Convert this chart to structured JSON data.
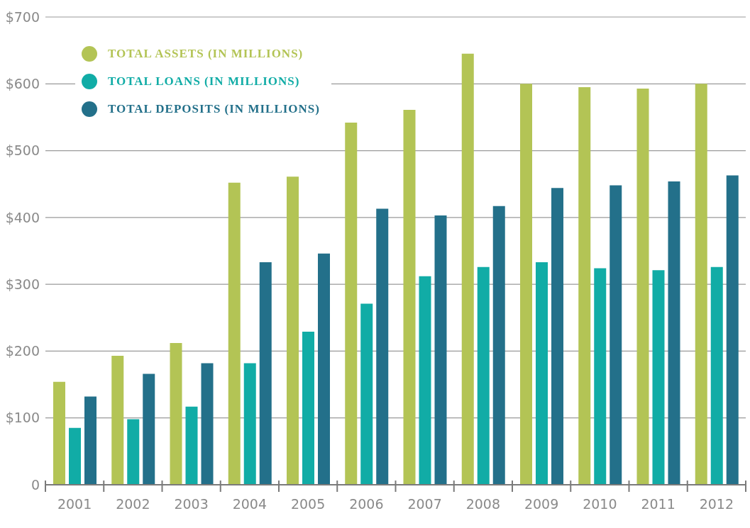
{
  "chart_data": {
    "type": "bar",
    "categories": [
      "2001",
      "2002",
      "2003",
      "2004",
      "2005",
      "2006",
      "2007",
      "2008",
      "2009",
      "2010",
      "2011",
      "2012"
    ],
    "series": [
      {
        "name": "TOTAL ASSETS (IN MILLIONS)",
        "color": "#b3c455",
        "values": [
          154,
          193,
          212,
          452,
          461,
          542,
          561,
          645,
          600,
          595,
          593,
          600
        ]
      },
      {
        "name": "TOTAL LOANS (IN MILLIONS)",
        "color": "#11aca6",
        "values": [
          85,
          98,
          117,
          182,
          229,
          271,
          312,
          326,
          333,
          324,
          321,
          326
        ]
      },
      {
        "name": "TOTAL DEPOSITS (IN MILLIONS)",
        "color": "#23708a",
        "values": [
          132,
          166,
          182,
          333,
          346,
          413,
          403,
          417,
          444,
          448,
          454,
          463
        ]
      }
    ],
    "ylim": [
      0,
      700
    ],
    "yticks": [
      {
        "value": 0,
        "label": "0"
      },
      {
        "value": 100,
        "label": "$100"
      },
      {
        "value": 200,
        "label": "$200"
      },
      {
        "value": 300,
        "label": "$300"
      },
      {
        "value": 400,
        "label": "$400"
      },
      {
        "value": 500,
        "label": "$500"
      },
      {
        "value": 600,
        "label": "$600"
      },
      {
        "value": 700,
        "label": "$700"
      }
    ],
    "grid": "y",
    "legend": "top left"
  }
}
